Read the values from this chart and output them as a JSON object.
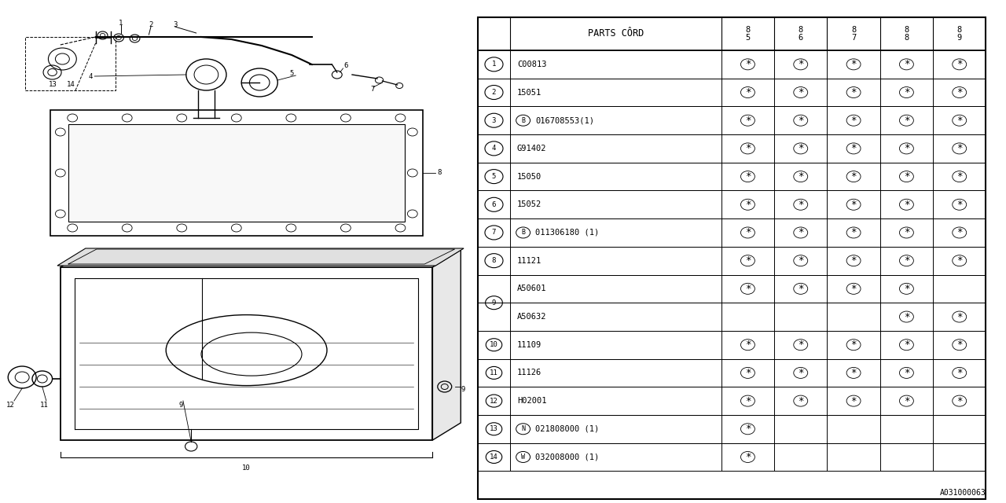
{
  "diagram_code": "A031000063",
  "bg_color": "#ffffff",
  "line_color": "#000000",
  "table_rows": [
    {
      "num": "1",
      "prefix": "",
      "code": "C00813",
      "marks": [
        1,
        1,
        1,
        1,
        1
      ]
    },
    {
      "num": "2",
      "prefix": "",
      "code": "15051",
      "marks": [
        1,
        1,
        1,
        1,
        1
      ]
    },
    {
      "num": "3",
      "prefix": "B",
      "code": "016708553(1)",
      "marks": [
        1,
        1,
        1,
        1,
        1
      ]
    },
    {
      "num": "4",
      "prefix": "",
      "code": "G91402",
      "marks": [
        1,
        1,
        1,
        1,
        1
      ]
    },
    {
      "num": "5",
      "prefix": "",
      "code": "15050",
      "marks": [
        1,
        1,
        1,
        1,
        1
      ]
    },
    {
      "num": "6",
      "prefix": "",
      "code": "15052",
      "marks": [
        1,
        1,
        1,
        1,
        1
      ]
    },
    {
      "num": "7",
      "prefix": "B",
      "code": "011306180 (1)",
      "marks": [
        1,
        1,
        1,
        1,
        1
      ]
    },
    {
      "num": "8",
      "prefix": "",
      "code": "11121",
      "marks": [
        1,
        1,
        1,
        1,
        1
      ]
    },
    {
      "num": "9",
      "prefix": "",
      "code": "A50601",
      "marks": [
        1,
        1,
        1,
        1,
        0
      ],
      "sub": true
    },
    {
      "num": "9",
      "prefix": "",
      "code": "A50632",
      "marks": [
        0,
        0,
        0,
        1,
        1
      ],
      "sub": true,
      "nosep": true
    },
    {
      "num": "10",
      "prefix": "",
      "code": "11109",
      "marks": [
        1,
        1,
        1,
        1,
        1
      ]
    },
    {
      "num": "11",
      "prefix": "",
      "code": "11126",
      "marks": [
        1,
        1,
        1,
        1,
        1
      ]
    },
    {
      "num": "12",
      "prefix": "",
      "code": "H02001",
      "marks": [
        1,
        1,
        1,
        1,
        1
      ]
    },
    {
      "num": "13",
      "prefix": "N",
      "code": "021808000 (1)",
      "marks": [
        1,
        0,
        0,
        0,
        0
      ]
    },
    {
      "num": "14",
      "prefix": "W",
      "code": "032008000 (1)",
      "marks": [
        1,
        0,
        0,
        0,
        0
      ]
    }
  ],
  "col_headers": [
    "8\n5",
    "8\n6",
    "8\n7",
    "8\n8",
    "8\n9"
  ]
}
